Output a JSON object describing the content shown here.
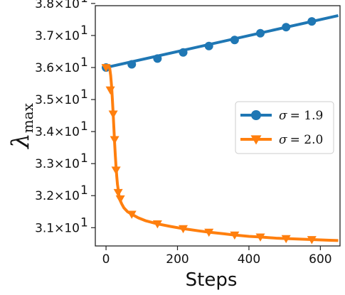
{
  "chart_data": {
    "type": "line",
    "xlabel": "Steps",
    "ylabel_symbol": "λ",
    "ylabel_subscript": "max",
    "xlim": [
      -30,
      655
    ],
    "ylim": [
      30.43,
      37.93
    ],
    "xticks": [
      0,
      200,
      400,
      600
    ],
    "xtick_labels": [
      "0",
      "200",
      "400",
      "600"
    ],
    "yticks": [
      31,
      32,
      33,
      34,
      35,
      36,
      37,
      38
    ],
    "ytick_labels": [
      "3.1×10",
      "3.2×10",
      "3.3×10",
      "3.4×10",
      "3.5×10",
      "3.6×10",
      "3.7×10",
      "3.8×10"
    ],
    "ytick_exponent": "1",
    "grid": false,
    "legend_position": "center-right",
    "series": [
      {
        "name": "σ = 1.9",
        "legend_symbol": "σ",
        "legend_value": "= 1.9",
        "color": "#1f77b4",
        "marker": "circle",
        "line_x": [
          0,
          650
        ],
        "line_y": [
          36.0,
          37.62
        ],
        "markers_x": [
          0,
          72,
          144,
          216,
          288,
          360,
          432,
          504,
          576
        ],
        "markers_y": [
          36.0,
          36.1,
          36.28,
          36.47,
          36.67,
          36.86,
          37.07,
          37.26,
          37.44
        ]
      },
      {
        "name": "σ = 2.0",
        "legend_symbol": "σ",
        "legend_value": "= 2.0",
        "color": "#ff7f0e",
        "marker": "triangle-down",
        "line_x": [
          0,
          5,
          10,
          13,
          16,
          18,
          20,
          22,
          24,
          26,
          28,
          30,
          32,
          34,
          36,
          38,
          40,
          44,
          50,
          60,
          72,
          90,
          110,
          144,
          180,
          216,
          260,
          288,
          330,
          360,
          400,
          432,
          480,
          504,
          550,
          576,
          620,
          650
        ],
        "line_y": [
          36.02,
          36.03,
          36.0,
          35.75,
          35.35,
          34.95,
          34.55,
          34.1,
          33.65,
          33.25,
          32.9,
          32.6,
          32.35,
          32.2,
          32.02,
          31.92,
          31.84,
          31.74,
          31.62,
          31.5,
          31.42,
          31.31,
          31.22,
          31.12,
          31.04,
          30.97,
          30.9,
          30.86,
          30.81,
          30.77,
          30.73,
          30.71,
          30.67,
          30.66,
          30.64,
          30.63,
          30.61,
          30.6
        ]
      }
    ],
    "series2_markers_x": [
      0,
      12,
      20,
      24,
      28,
      34,
      40,
      72,
      144,
      216,
      288,
      360,
      432,
      504,
      576
    ],
    "series2_markers_y": [
      36.0,
      35.3,
      34.55,
      33.75,
      32.8,
      32.1,
      31.9,
      31.42,
      31.12,
      30.97,
      30.86,
      30.77,
      30.71,
      30.66,
      30.63
    ]
  }
}
